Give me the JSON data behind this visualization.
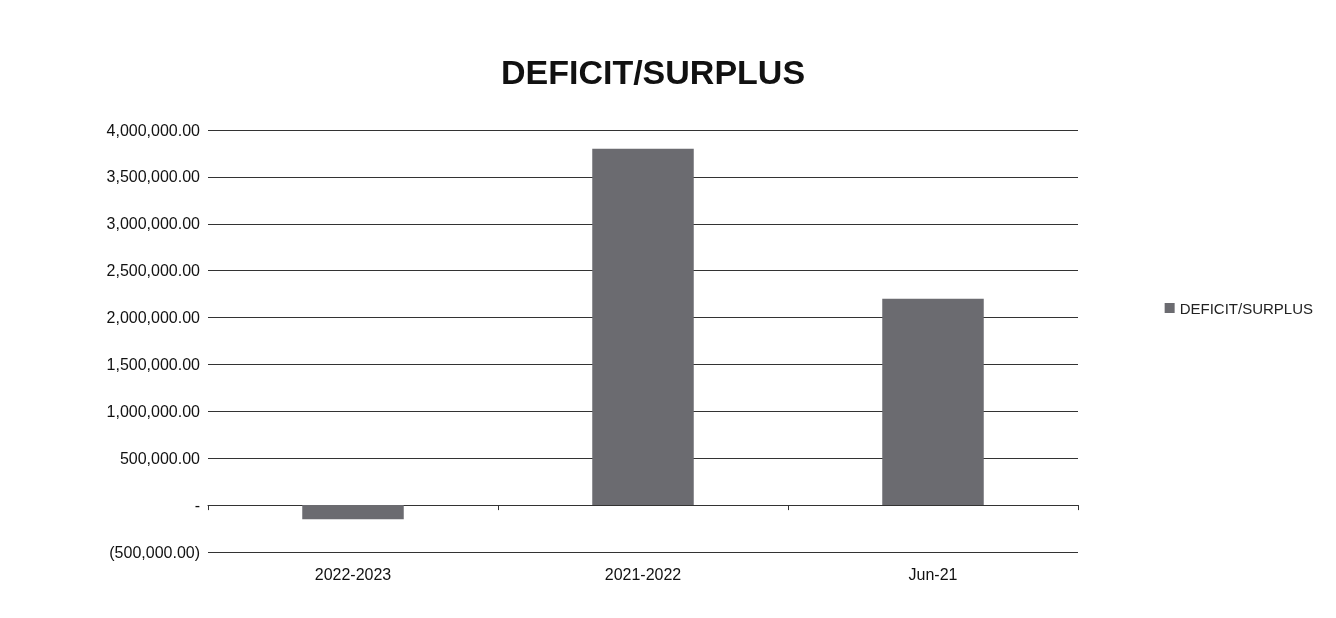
{
  "chart_data": {
    "type": "bar",
    "title": "DEFICIT/SURPLUS",
    "categories": [
      "2022-2023",
      "2021-2022",
      "Jun-21"
    ],
    "series": [
      {
        "name": "DEFICIT/SURPLUS",
        "color": "#6b6b70",
        "values": [
          -150000,
          3800000,
          2200000
        ]
      }
    ],
    "ylim": [
      -500000,
      4000000
    ],
    "yticks": [
      {
        "value": -500000,
        "label": "(500,000.00)"
      },
      {
        "value": 0,
        "label": "-"
      },
      {
        "value": 500000,
        "label": "500,000.00"
      },
      {
        "value": 1000000,
        "label": "1,000,000.00"
      },
      {
        "value": 1500000,
        "label": "1,500,000.00"
      },
      {
        "value": 2000000,
        "label": "2,000,000.00"
      },
      {
        "value": 2500000,
        "label": "2,500,000.00"
      },
      {
        "value": 3000000,
        "label": "3,000,000.00"
      },
      {
        "value": 3500000,
        "label": "3,500,000.00"
      },
      {
        "value": 4000000,
        "label": "4,000,000.00"
      }
    ],
    "grid": true,
    "legend": "right"
  }
}
